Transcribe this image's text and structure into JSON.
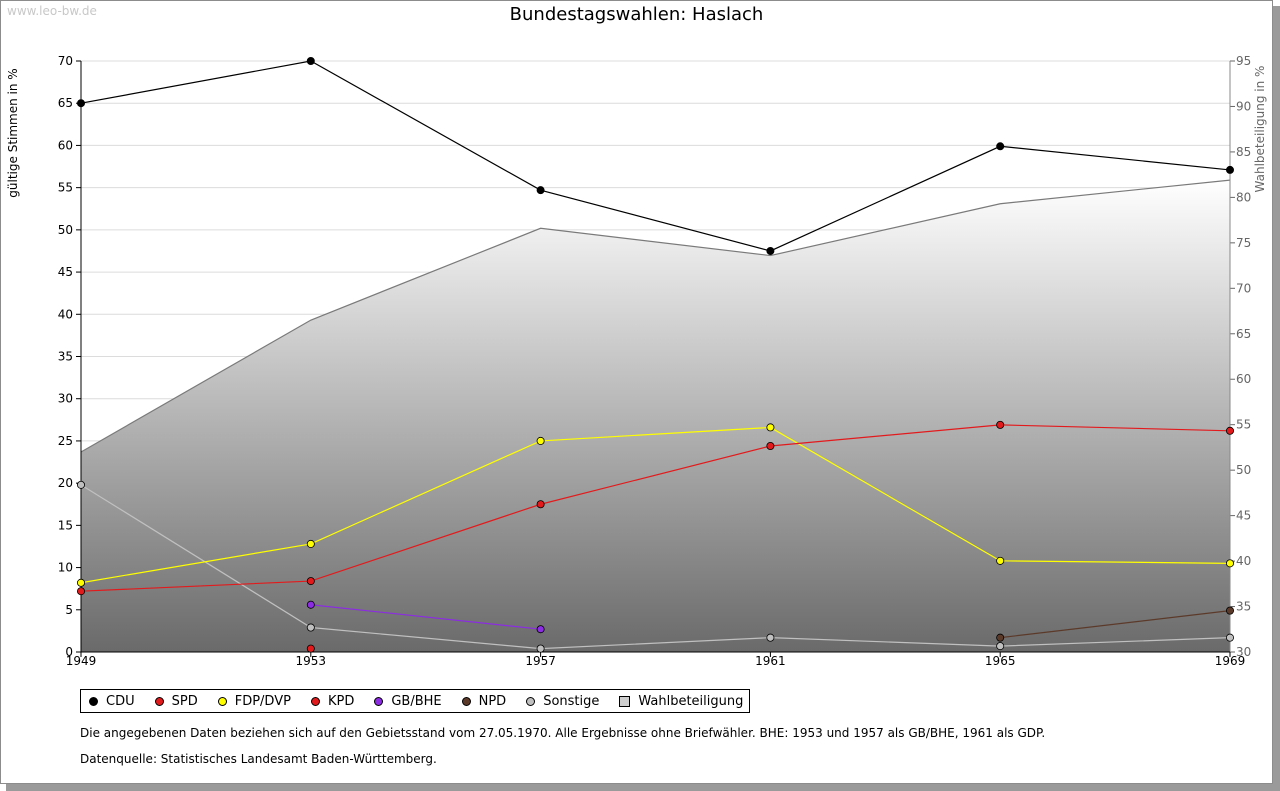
{
  "watermark": "www.leo-bw.de",
  "chart_data": {
    "type": "line",
    "title": "Bundestagswahlen: Haslach",
    "ylabel": "gültige Stimmen in %",
    "y2label": "Wahlbeteiligung in %",
    "x": [
      1949,
      1953,
      1957,
      1961,
      1965,
      1969
    ],
    "xticks": [
      "1949",
      "1953",
      "1957",
      "1961",
      "1965",
      "1969"
    ],
    "ylim": [
      0,
      70
    ],
    "yticks": [
      "0",
      "5",
      "10",
      "15",
      "20",
      "25",
      "30",
      "35",
      "40",
      "45",
      "50",
      "55",
      "60",
      "65",
      "70"
    ],
    "y2lim": [
      30,
      95
    ],
    "y2ticks": [
      "30",
      "35",
      "40",
      "45",
      "50",
      "55",
      "60",
      "65",
      "70",
      "75",
      "80",
      "85",
      "90",
      "95"
    ],
    "area_series": {
      "name": "Wahlbeteiligung",
      "values": [
        52,
        66.5,
        76.6,
        73.6,
        79.3,
        81.9
      ]
    },
    "series": [
      {
        "name": "CDU",
        "color": "#000000",
        "values": [
          65,
          70,
          54.7,
          47.5,
          59.9,
          57.1
        ]
      },
      {
        "name": "SPD",
        "color": "#e31a1c",
        "values": [
          7.2,
          8.4,
          17.5,
          24.4,
          26.9,
          26.2
        ]
      },
      {
        "name": "FDP/DVP",
        "color": "#ffff00",
        "values": [
          8.2,
          12.8,
          25.0,
          26.6,
          10.8,
          10.5
        ]
      },
      {
        "name": "KPD",
        "color": "#e31a1c",
        "values": [
          null,
          0.4,
          null,
          null,
          null,
          null
        ]
      },
      {
        "name": "GB/BHE",
        "color": "#8b2be2",
        "values": [
          null,
          5.6,
          2.7,
          null,
          null,
          null
        ]
      },
      {
        "name": "NPD",
        "color": "#5c3a2a",
        "values": [
          null,
          null,
          null,
          null,
          1.7,
          4.9
        ]
      },
      {
        "name": "Sonstige",
        "color": "#c0c0c0",
        "values": [
          19.8,
          2.9,
          0.4,
          1.7,
          0.7,
          1.7
        ]
      }
    ]
  },
  "legend": [
    {
      "label": "CDU",
      "color": "#000000",
      "shape": "dot"
    },
    {
      "label": "SPD",
      "color": "#e31a1c",
      "shape": "dot"
    },
    {
      "label": "FDP/DVP",
      "color": "#ffff00",
      "shape": "dot"
    },
    {
      "label": "KPD",
      "color": "#e31a1c",
      "shape": "dot"
    },
    {
      "label": "GB/BHE",
      "color": "#8b2be2",
      "shape": "dot"
    },
    {
      "label": "NPD",
      "color": "#5c3a2a",
      "shape": "dot"
    },
    {
      "label": "Sonstige",
      "color": "#c0c0c0",
      "shape": "dot"
    },
    {
      "label": "Wahlbeteiligung",
      "color": "#cfcfcf",
      "shape": "square"
    }
  ],
  "notes": {
    "note1": "Die angegebenen Daten beziehen sich auf den Gebietsstand vom 27.05.1970. Alle Ergebnisse ohne Briefwähler. BHE: 1953 und 1957 als GB/BHE, 1961 als GDP.",
    "source": "Datenquelle: Statistisches Landesamt Baden-Württemberg."
  }
}
